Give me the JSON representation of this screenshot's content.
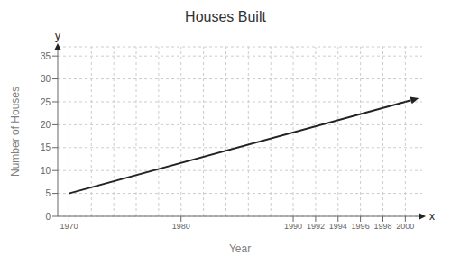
{
  "chart_data": {
    "type": "line",
    "title": "Houses Built",
    "xlabel": "Year",
    "ylabel": "Number of Houses",
    "x": [
      1970,
      2000
    ],
    "series": [
      {
        "color": "#222222",
        "values": [
          5,
          25
        ]
      }
    ],
    "xlim": [
      1969,
      2001.5
    ],
    "xticks": [
      1970,
      1980,
      1990,
      1992,
      1994,
      1996,
      1998,
      2000
    ],
    "x_grid_lines": [
      1970,
      1972,
      1974,
      1976,
      1978,
      1980,
      1982,
      1984,
      1986,
      1988,
      1990,
      1992,
      1994,
      1996,
      1998,
      2000
    ],
    "ylim": [
      0,
      37
    ],
    "yticks": [
      0,
      5,
      10,
      15,
      20,
      25,
      30,
      35
    ],
    "grid": true,
    "annotations": [
      {
        "type": "arrow",
        "x": [
          2000,
          2001.2
        ],
        "y": [
          25,
          25.8
        ]
      },
      {
        "text": "x"
      },
      {
        "text": "y"
      }
    ]
  }
}
